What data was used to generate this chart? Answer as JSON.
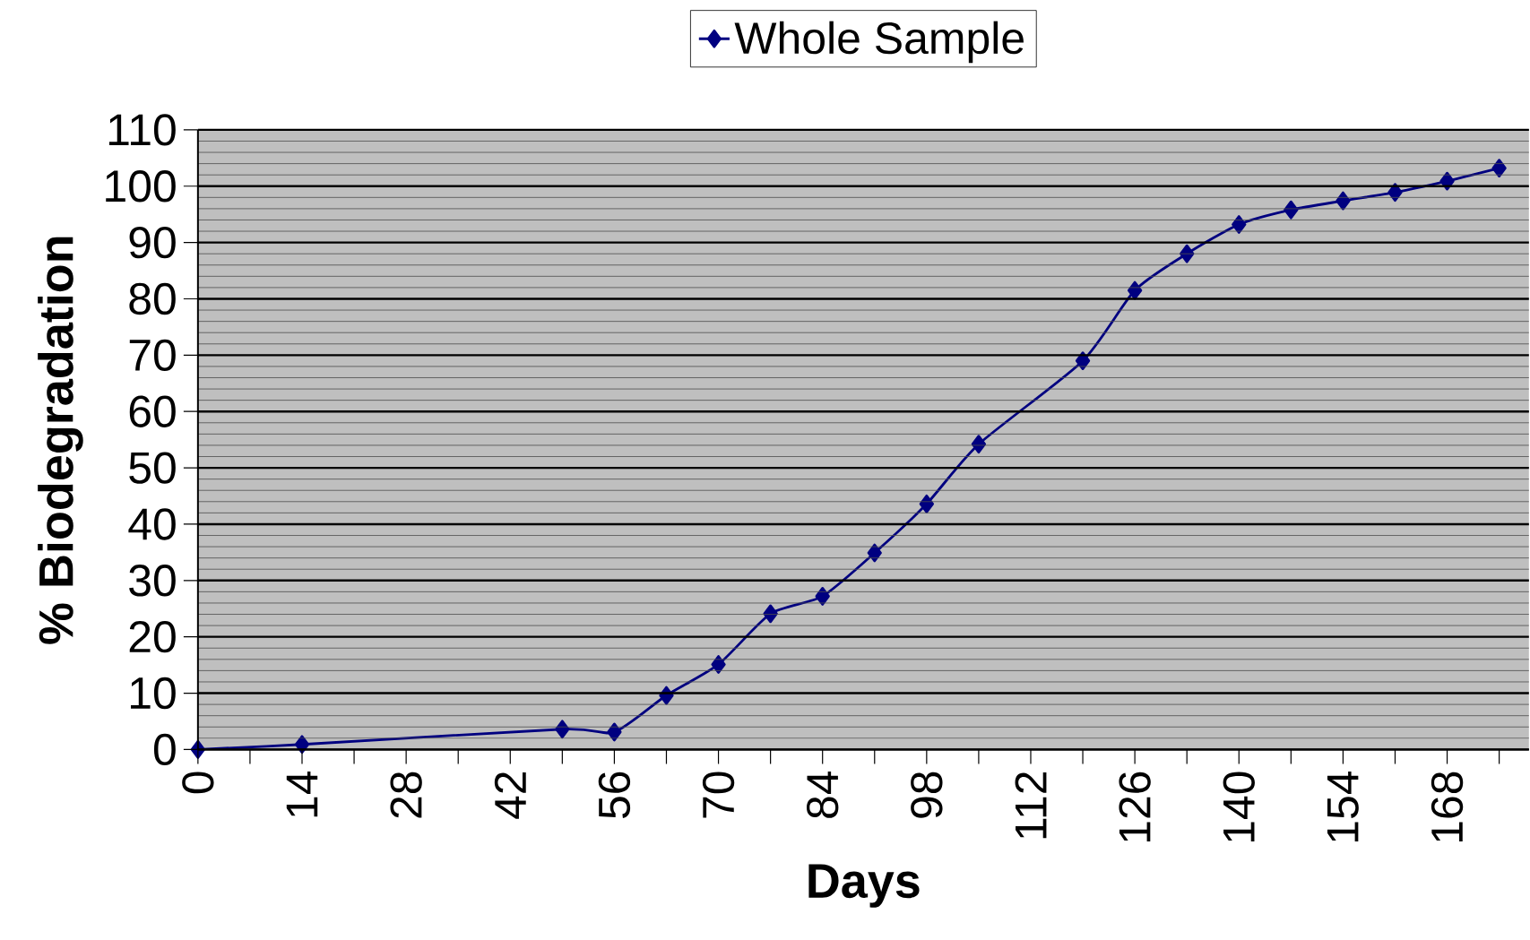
{
  "chart_data": {
    "type": "line",
    "xlabel": "Days",
    "ylabel": "% Biodegradation",
    "x": [
      0,
      14,
      49,
      56,
      63,
      70,
      77,
      84,
      91,
      98,
      105,
      119,
      126,
      133,
      140,
      147,
      154,
      161,
      168,
      175
    ],
    "series": [
      {
        "name": "Whole Sample",
        "color": "#000080",
        "values": [
          0,
          0.9,
          3.6,
          3.1,
          9.6,
          15.1,
          24.1,
          27.2,
          34.9,
          43.6,
          54.2,
          69,
          81.5,
          88,
          93.2,
          95.8,
          97.4,
          98.9,
          100.9,
          103.2
        ]
      }
    ],
    "xlim": [
      0,
      179
    ],
    "ylim": [
      0,
      110
    ],
    "xticks": [
      0,
      {
        "value": 7,
        "label": null
      },
      14,
      {
        "value": 21,
        "label": null
      },
      28,
      {
        "value": 35,
        "label": null
      },
      42,
      {
        "value": 49,
        "label": null
      },
      56,
      {
        "value": 63,
        "label": null
      },
      70,
      {
        "value": 77,
        "label": null
      },
      84,
      {
        "value": 91,
        "label": null
      },
      98,
      {
        "value": 105,
        "label": null
      },
      112,
      {
        "value": 119,
        "label": null
      },
      126,
      {
        "value": 133,
        "label": null
      },
      140,
      {
        "value": 147,
        "label": null
      },
      154,
      {
        "value": 161,
        "label": null
      },
      168,
      {
        "value": 175,
        "label": null
      }
    ],
    "yticks": [
      0,
      10,
      20,
      30,
      40,
      50,
      60,
      70,
      80,
      90,
      100,
      110
    ],
    "grid": "y",
    "legend": "top",
    "marker": "diamond",
    "line_style": "solid"
  }
}
